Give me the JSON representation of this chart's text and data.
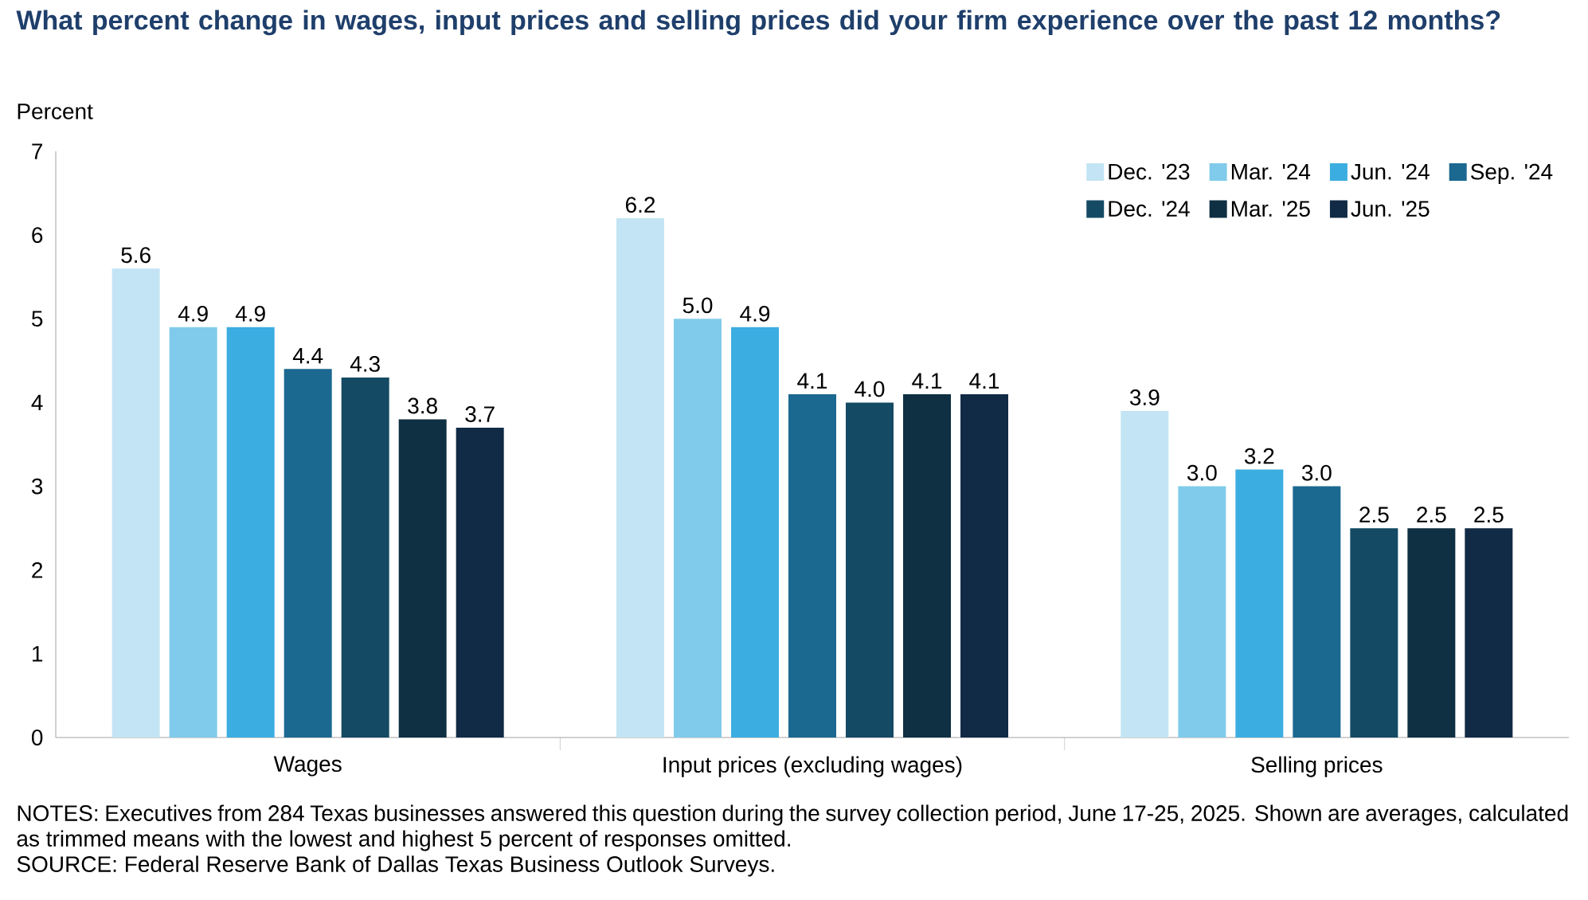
{
  "chart_data": {
    "type": "bar",
    "title": "What percent change in wages, input prices and selling prices did your firm experience over the past 12 months?",
    "ylabel": "Percent",
    "categories": [
      "Wages",
      "Input prices (excluding wages)",
      "Selling prices"
    ],
    "series": [
      {
        "name": "Dec. '23",
        "color": "#c3e4f4",
        "values": [
          5.6,
          6.2,
          3.9
        ],
        "value_labels": [
          "5.6",
          "6.2",
          "3.9"
        ]
      },
      {
        "name": "Mar. '24",
        "color": "#80cbeb",
        "values": [
          4.9,
          5.0,
          3.0
        ],
        "value_labels": [
          "4.9",
          "5.0",
          "3.0"
        ]
      },
      {
        "name": "Jun. '24",
        "color": "#3cade0",
        "values": [
          4.9,
          4.9,
          3.2
        ],
        "value_labels": [
          "4.9",
          "4.9",
          "3.2"
        ]
      },
      {
        "name": "Sep. '24",
        "color": "#1b6890",
        "values": [
          4.4,
          4.1,
          3.0
        ],
        "value_labels": [
          "4.4",
          "4.1",
          "3.0"
        ]
      },
      {
        "name": "Dec. '24",
        "color": "#144a63",
        "values": [
          4.3,
          4.0,
          2.5
        ],
        "value_labels": [
          "4.3",
          "4.0",
          "2.5"
        ]
      },
      {
        "name": "Mar. '25",
        "color": "#0f2f42",
        "values": [
          3.8,
          4.1,
          2.5
        ],
        "value_labels": [
          "3.8",
          "4.1",
          "2.5"
        ]
      },
      {
        "name": "Jun. '25",
        "color": "#112a45",
        "values": [
          3.7,
          4.1,
          2.5
        ],
        "value_labels": [
          "3.7",
          "4.1",
          "2.5"
        ]
      }
    ],
    "ylim": [
      0,
      7
    ],
    "yticks": [
      0,
      1,
      2,
      3,
      4,
      5,
      6,
      7
    ],
    "grid": false,
    "legend": "top right",
    "annotations": [
      "NOTES: Executives from 284 Texas businesses answered this question during the survey collection period, June 17-25, 2025. Shown are averages, calculated as trimmed means with the lowest and highest 5 percent of responses omitted.",
      "SOURCE: Federal Reserve Bank of Dallas Texas Business Outlook Surveys."
    ]
  }
}
